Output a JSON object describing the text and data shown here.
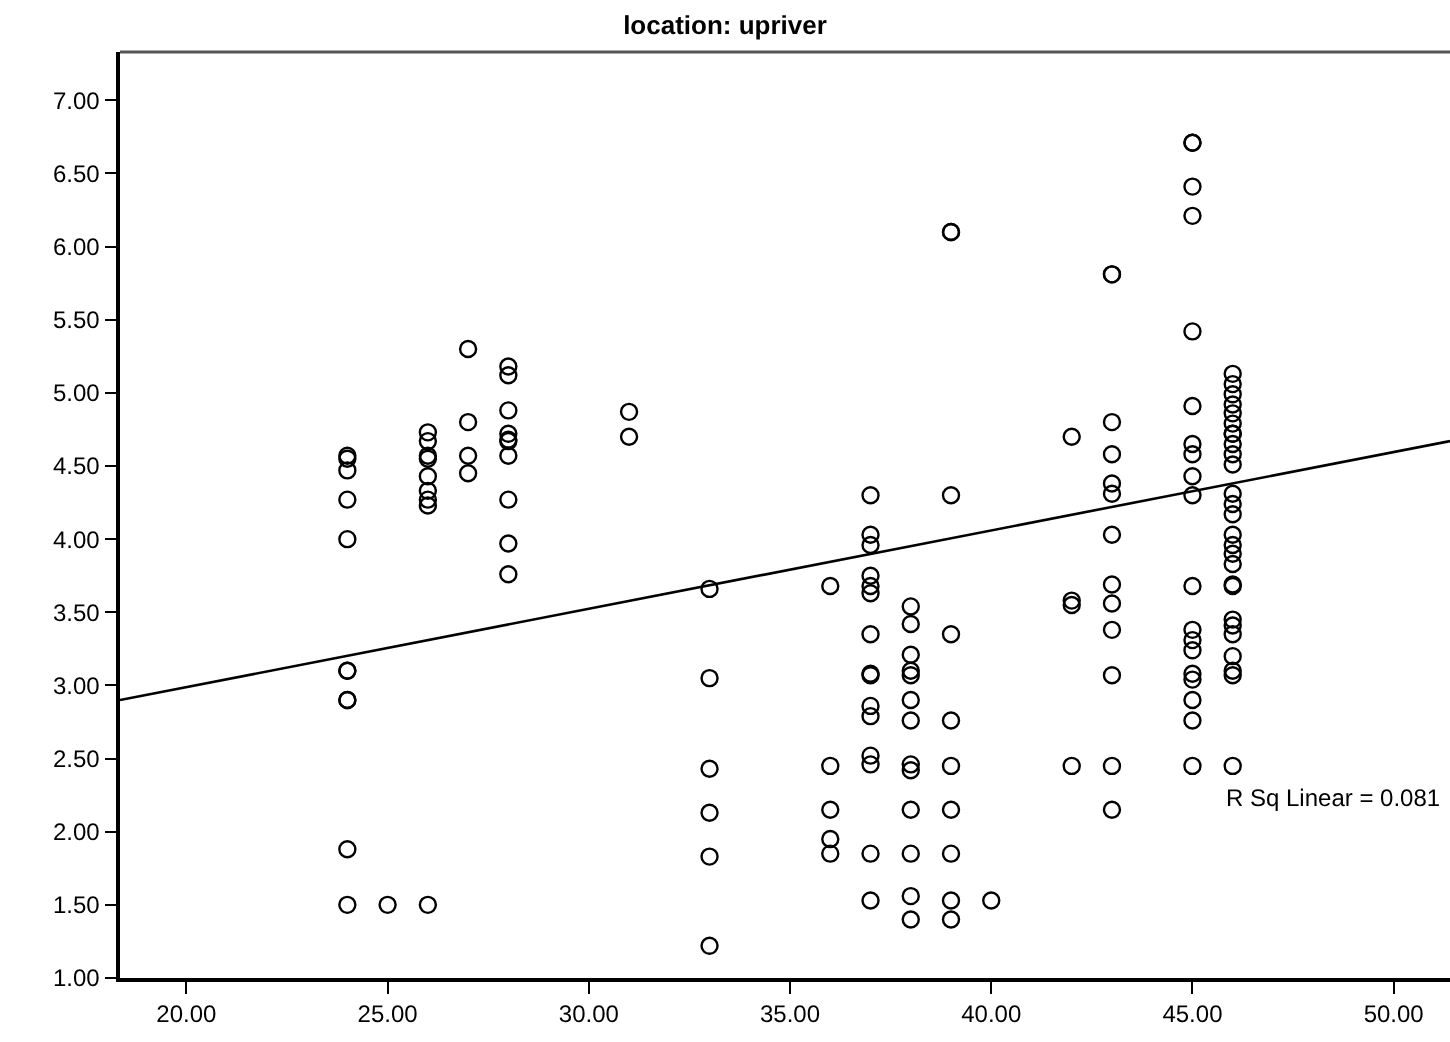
{
  "chart_data": {
    "type": "scatter",
    "title": "location: upriver",
    "annotations": [
      "R Sq Linear = 0.081"
    ],
    "xlim": [
      18.35,
      51.4
    ],
    "xticks": [
      {
        "value": 20,
        "label": "20.00"
      },
      {
        "value": 25,
        "label": "25.00"
      },
      {
        "value": 30,
        "label": "30.00"
      },
      {
        "value": 35,
        "label": "35.00"
      },
      {
        "value": 40,
        "label": "40.00"
      },
      {
        "value": 45,
        "label": "45.00"
      },
      {
        "value": 50,
        "label": "50.00"
      }
    ],
    "ylim": [
      1.0,
      7.33
    ],
    "yticks": [
      {
        "value": 1,
        "label": "1.00"
      },
      {
        "value": 1.5,
        "label": "1.50"
      },
      {
        "value": 2,
        "label": "2.00"
      },
      {
        "value": 2.5,
        "label": "2.50"
      },
      {
        "value": 3,
        "label": "3.00"
      },
      {
        "value": 3.5,
        "label": "3.50"
      },
      {
        "value": 4,
        "label": "4.00"
      },
      {
        "value": 4.5,
        "label": "4.50"
      },
      {
        "value": 5,
        "label": "5.00"
      },
      {
        "value": 5.5,
        "label": "5.50"
      },
      {
        "value": 6,
        "label": "6.00"
      },
      {
        "value": 6.5,
        "label": "6.50"
      },
      {
        "value": 7,
        "label": "7.00"
      }
    ],
    "grid": false,
    "marker": "circle",
    "series": [
      {
        "color": "#000000",
        "x": [
          24,
          24,
          24,
          24,
          24,
          24,
          24,
          24,
          24,
          24,
          24,
          25,
          26,
          26,
          26,
          26,
          26,
          26,
          26,
          26,
          26,
          27,
          27,
          27,
          27,
          28,
          28,
          28,
          28,
          28,
          28,
          28,
          28,
          28,
          28,
          31,
          31,
          33,
          33,
          33,
          33,
          33,
          33,
          36,
          36,
          36,
          36,
          36,
          37,
          37,
          37,
          37,
          37,
          37,
          37,
          37,
          37,
          37,
          37,
          37,
          37,
          37,
          37,
          38,
          38,
          38,
          38,
          38,
          38,
          38,
          38,
          38,
          38,
          38,
          38,
          38,
          39,
          39,
          39,
          39,
          39,
          39,
          39,
          39,
          39,
          39,
          40,
          42,
          42,
          42,
          42,
          43,
          43,
          43,
          43,
          43,
          43,
          43,
          43,
          43,
          43,
          43,
          43,
          43,
          45,
          45,
          45,
          45,
          45,
          45,
          45,
          45,
          45,
          45,
          45,
          45,
          45,
          45,
          45,
          45,
          45,
          45,
          45,
          46,
          46,
          46,
          46,
          46,
          46,
          46,
          46,
          46,
          46,
          46,
          46,
          46,
          46,
          46,
          46,
          46,
          46,
          46,
          46,
          46,
          46,
          46,
          46,
          46,
          46,
          46
        ],
        "values": [
          4.57,
          4.47,
          4.27,
          4.0,
          3.1,
          2.9,
          1.88,
          1.5,
          4.55,
          3.1,
          2.9,
          1.5,
          1.5,
          4.73,
          4.67,
          4.57,
          4.55,
          4.43,
          4.33,
          4.27,
          4.23,
          5.3,
          4.8,
          4.57,
          4.45,
          5.18,
          5.12,
          4.88,
          4.72,
          4.68,
          4.67,
          4.57,
          4.27,
          3.97,
          3.76,
          4.87,
          4.7,
          3.66,
          3.05,
          2.43,
          2.13,
          1.83,
          1.22,
          3.68,
          2.45,
          2.15,
          1.95,
          1.85,
          4.3,
          4.03,
          3.96,
          3.75,
          3.68,
          3.63,
          3.35,
          3.08,
          3.07,
          2.86,
          2.79,
          2.52,
          2.46,
          1.85,
          1.53,
          3.54,
          3.42,
          3.21,
          3.1,
          3.07,
          2.9,
          2.76,
          2.46,
          2.42,
          2.15,
          1.85,
          1.56,
          1.4,
          6.1,
          4.3,
          3.35,
          2.76,
          2.45,
          2.15,
          1.85,
          1.53,
          1.4,
          6.1,
          1.53,
          4.7,
          3.58,
          3.55,
          2.45,
          5.81,
          4.8,
          4.58,
          4.38,
          4.31,
          4.03,
          3.69,
          3.56,
          3.38,
          3.07,
          2.45,
          2.15,
          5.81,
          6.71,
          6.41,
          6.21,
          5.42,
          4.91,
          4.65,
          4.58,
          4.43,
          4.3,
          3.68,
          3.38,
          3.31,
          3.24,
          3.08,
          3.04,
          2.9,
          2.76,
          2.45,
          6.71,
          5.13,
          5.06,
          4.99,
          4.92,
          4.86,
          4.79,
          4.72,
          4.65,
          4.58,
          4.51,
          4.31,
          4.24,
          4.17,
          4.03,
          3.96,
          3.9,
          3.83,
          3.69,
          3.68,
          3.45,
          3.41,
          3.35,
          3.2,
          3.1,
          3.07,
          2.45,
          4.72
        ]
      },
      {
        "type": "line",
        "color": "#000000",
        "marker": "none",
        "x": [
          18.35,
          51.4
        ],
        "values": [
          2.9,
          4.67
        ]
      }
    ]
  }
}
